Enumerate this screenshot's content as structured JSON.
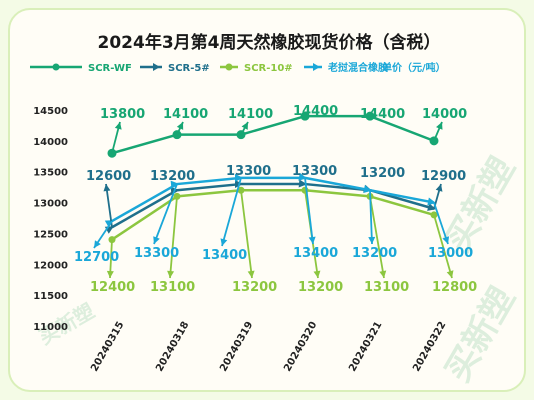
{
  "chart_data": {
    "type": "line",
    "title": "2024年3月第4周天然橡胶现货价格（含税）",
    "unit_label": "单价（元/吨）",
    "categories": [
      "20240315",
      "20240318",
      "20240319",
      "20240320",
      "20240321",
      "20240322"
    ],
    "ylim": [
      11000,
      14500
    ],
    "yticks": [
      11000,
      11500,
      12000,
      12500,
      13000,
      13500,
      14000,
      14500
    ],
    "grid": false,
    "legend_position": "top",
    "series": [
      {
        "name": "SCR-WF",
        "color": "#17a673",
        "values": [
          13800,
          14100,
          14100,
          14400,
          14400,
          14000
        ]
      },
      {
        "name": "SCR-5#",
        "color": "#1f6f8b",
        "values": [
          12600,
          13200,
          13300,
          13300,
          13200,
          12900
        ]
      },
      {
        "name": "SCR-10#",
        "color": "#8cc63f",
        "values": [
          12400,
          13100,
          13200,
          13200,
          13100,
          12800
        ]
      },
      {
        "name": "老挝混合橡胶",
        "color": "#1aa7d8",
        "values": [
          12700,
          13300,
          13400,
          13400,
          13200,
          13000
        ]
      }
    ],
    "watermark": "买新塑"
  }
}
